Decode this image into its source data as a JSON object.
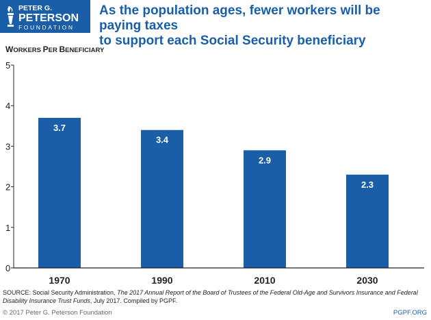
{
  "logo": {
    "line1": "PETER G.",
    "line2": "PETERSON",
    "line3": "FOUNDATION",
    "icon": "torch-icon",
    "colors": {
      "background": "#1a5ea8",
      "text": "#ffffff"
    }
  },
  "headline": "As the population ages, fewer workers will be paying taxes\nto support each Social Security beneficiary",
  "source": {
    "prefix": "SOURCE: Social Security Administration, ",
    "title": "The 2017 Annual Report of the Board of Trustees of the Federal Old-Age and Survivors Insurance and Federal Disability Insurance Trust Funds",
    "suffix": ", July 2017. Compiled by PGPF."
  },
  "footer": {
    "copyright": "© 2017 Peter G. Peterson Foundation",
    "site": "PGPF.ORG"
  },
  "colors": {
    "bar": "#1a5ea8",
    "headline": "#1a5ea8",
    "axis": "#222222"
  },
  "chart_data": {
    "type": "bar",
    "title": "Workers per Beneficiary",
    "xlabel": "",
    "ylabel": "",
    "categories": [
      "1970",
      "1990",
      "2010",
      "2030"
    ],
    "values": [
      3.7,
      3.4,
      2.9,
      2.3
    ],
    "data_labels": [
      "3.7",
      "3.4",
      "2.9",
      "2.3"
    ],
    "ylim": [
      0,
      5
    ],
    "yticks": [
      0,
      1,
      2,
      3,
      4,
      5
    ],
    "grid": false,
    "legend": "none"
  }
}
